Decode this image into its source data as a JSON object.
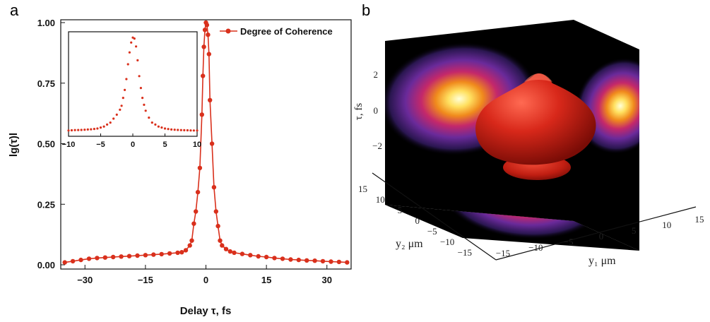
{
  "panels": {
    "a": "a",
    "b": "b"
  },
  "colors": {
    "series": "#d9301c",
    "axis": "#111111",
    "surface": "#d42516"
  },
  "chart_data": [
    {
      "panel": "a",
      "type": "line",
      "title": "",
      "xlabel": "Delay τ, fs",
      "ylabel": "lg(τ)l",
      "xlim": [
        -36,
        36
      ],
      "ylim": [
        0,
        1.0
      ],
      "xticks": [
        -30,
        -15,
        0,
        15,
        30
      ],
      "xtick_labels": [
        "−30",
        "−15",
        "0",
        "15",
        "30"
      ],
      "yticks": [
        0,
        0.25,
        0.5,
        0.75,
        1.0
      ],
      "ytick_labels": [
        "0.00",
        "0.25",
        "0.50",
        "0.75",
        "1.00"
      ],
      "legend": {
        "position": "top-right",
        "entries": [
          "Degree of Coherence"
        ]
      },
      "series": [
        {
          "name": "Degree of Coherence",
          "x": [
            -35,
            -33,
            -31,
            -29,
            -27,
            -25,
            -23,
            -21,
            -19,
            -17,
            -15,
            -13,
            -11,
            -9,
            -7,
            -6,
            -5,
            -4,
            -3.5,
            -3,
            -2.5,
            -2,
            -1.5,
            -1,
            -0.75,
            -0.5,
            -0.25,
            0,
            0.25,
            0.5,
            0.75,
            1,
            1.5,
            2,
            2.5,
            3,
            3.5,
            4,
            5,
            6,
            7,
            9,
            11,
            13,
            15,
            17,
            19,
            21,
            23,
            25,
            27,
            29,
            31,
            33,
            35
          ],
          "y": [
            0.01,
            0.015,
            0.02,
            0.025,
            0.028,
            0.03,
            0.032,
            0.034,
            0.036,
            0.038,
            0.04,
            0.042,
            0.044,
            0.047,
            0.05,
            0.052,
            0.06,
            0.08,
            0.1,
            0.17,
            0.22,
            0.3,
            0.4,
            0.62,
            0.78,
            0.9,
            0.97,
            1.0,
            0.99,
            0.95,
            0.87,
            0.68,
            0.5,
            0.32,
            0.22,
            0.16,
            0.1,
            0.08,
            0.065,
            0.055,
            0.05,
            0.045,
            0.04,
            0.035,
            0.032,
            0.028,
            0.025,
            0.022,
            0.02,
            0.018,
            0.017,
            0.015,
            0.013,
            0.012,
            0.01
          ]
        }
      ]
    },
    {
      "panel": "a-inset",
      "type": "scatter",
      "title": "",
      "xlim": [
        -10,
        10
      ],
      "ylim": [
        0,
        1.0
      ],
      "xticks": [
        -10,
        -5,
        0,
        5,
        10
      ],
      "xtick_labels": [
        "−10",
        "−5",
        "0",
        "5",
        "10"
      ],
      "series": [
        {
          "name": "",
          "x": [
            -10,
            -9.5,
            -9,
            -8.5,
            -8,
            -7.5,
            -7,
            -6.5,
            -6,
            -5.5,
            -5,
            -4.5,
            -4,
            -3.5,
            -3,
            -2.5,
            -2,
            -1.75,
            -1.5,
            -1.25,
            -1,
            -0.75,
            -0.5,
            -0.25,
            0,
            0.25,
            0.5,
            0.75,
            1,
            1.25,
            1.5,
            1.75,
            2,
            2.5,
            3,
            3.5,
            4,
            4.5,
            5,
            5.5,
            6,
            6.5,
            7,
            7.5,
            8,
            8.5,
            9,
            9.5,
            10
          ],
          "y": [
            0.03,
            0.032,
            0.034,
            0.035,
            0.036,
            0.038,
            0.04,
            0.042,
            0.046,
            0.05,
            0.06,
            0.07,
            0.09,
            0.11,
            0.15,
            0.19,
            0.24,
            0.28,
            0.36,
            0.44,
            0.55,
            0.7,
            0.82,
            0.92,
            0.97,
            0.96,
            0.88,
            0.74,
            0.58,
            0.46,
            0.36,
            0.29,
            0.23,
            0.16,
            0.11,
            0.09,
            0.07,
            0.06,
            0.05,
            0.045,
            0.04,
            0.038,
            0.036,
            0.034,
            0.033,
            0.032,
            0.031,
            0.03,
            0.03
          ]
        }
      ]
    },
    {
      "panel": "b",
      "type": "surface3d",
      "title": "",
      "xlabel": "y₁ μm",
      "ylabel": "y₂ μm",
      "zlabel": "τ, fs",
      "x_tick_labels": [
        "−15",
        "−10",
        "−5",
        "0",
        "5",
        "10",
        "15"
      ],
      "y_tick_labels": [
        "15",
        "10",
        "5",
        "0",
        "−5",
        "−10",
        "−15"
      ],
      "z_tick_labels": [
        "2",
        "0",
        "−2"
      ]
    }
  ]
}
